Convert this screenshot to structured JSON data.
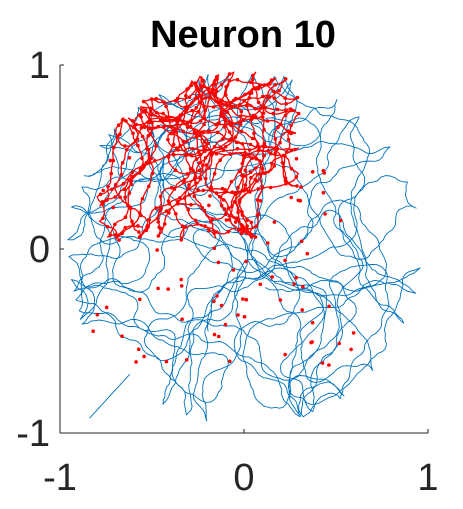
{
  "chart_data": {
    "type": "scatter",
    "title": "Neuron 10",
    "xlabel": "",
    "ylabel": "",
    "xlim": [
      -1,
      1
    ],
    "ylim": [
      -1,
      1
    ],
    "x_ticks": [
      {
        "value": -1,
        "label": "-1"
      },
      {
        "value": 0,
        "label": "0"
      },
      {
        "value": 1,
        "label": "1"
      }
    ],
    "y_ticks": [
      {
        "value": -1,
        "label": "-1"
      },
      {
        "value": 0,
        "label": "0"
      },
      {
        "value": 1,
        "label": "1"
      }
    ],
    "grid": false,
    "legend": "none",
    "series": [
      {
        "kind": "trajectory-line",
        "color": "#0072BD",
        "shape": "disk",
        "center": [
          0.0,
          0.0
        ],
        "radius": 0.97,
        "tail": [
          [
            -0.84,
            -0.92
          ],
          [
            -0.62,
            -0.68
          ]
        ]
      },
      {
        "kind": "spike-points",
        "color": "#FF0000",
        "dense_region": {
          "x_range": [
            -0.8,
            0.3
          ],
          "y_range": [
            0.05,
            0.97
          ]
        },
        "sparse_region": {
          "x_range": [
            -0.85,
            0.6
          ],
          "y_range": [
            -0.65,
            0.5
          ]
        }
      }
    ]
  }
}
